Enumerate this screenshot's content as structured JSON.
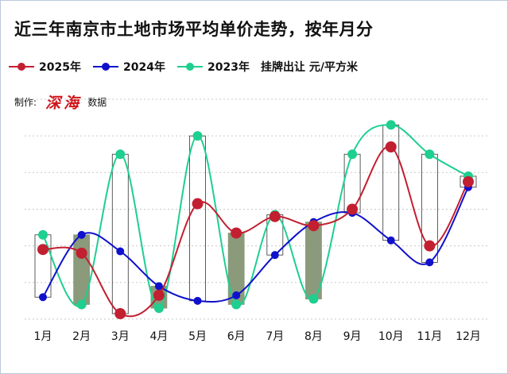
{
  "title": "近三年南京市土地市场平均单价走势，按年月分",
  "unit_note": "挂牌出让  元/平方米",
  "credit": {
    "prefix": "制作:",
    "name": "深海",
    "suffix": "数据"
  },
  "colors": {
    "s2025": "#c21f30",
    "s2024": "#1010cc",
    "s2023": "#1ecf8f",
    "box_fill": "#8a9a7a",
    "grid": "#c8c8c8"
  },
  "chart_data": {
    "type": "line",
    "smooth": true,
    "categories": [
      "1月",
      "2月",
      "3月",
      "4月",
      "5月",
      "6月",
      "7月",
      "8月",
      "9月",
      "10月",
      "11月",
      "12月"
    ],
    "series": [
      {
        "name": "2025年",
        "color_key": "s2025",
        "values": [
          6.8,
          6.6,
          3.3,
          4.3,
          9.3,
          7.7,
          8.6,
          8.1,
          9.0,
          12.4,
          7.0,
          10.5
        ]
      },
      {
        "name": "2024年",
        "color_key": "s2024",
        "values": [
          4.2,
          7.6,
          6.7,
          4.8,
          4.0,
          4.3,
          6.5,
          8.3,
          8.8,
          7.3,
          6.1,
          10.2
        ]
      },
      {
        "name": "2023年",
        "color_key": "s2023",
        "values": [
          7.6,
          3.8,
          12.0,
          3.6,
          13.0,
          3.8,
          8.7,
          4.1,
          12.0,
          13.6,
          12.0,
          10.8
        ]
      }
    ],
    "spread_markers": {
      "filled_months": [
        "2月",
        "4月",
        "6月",
        "8月"
      ]
    },
    "y_range": [
      2,
      15
    ],
    "y_tick_labels_visible": false,
    "grid": "horizontal dotted",
    "legend_position": "top-left"
  }
}
